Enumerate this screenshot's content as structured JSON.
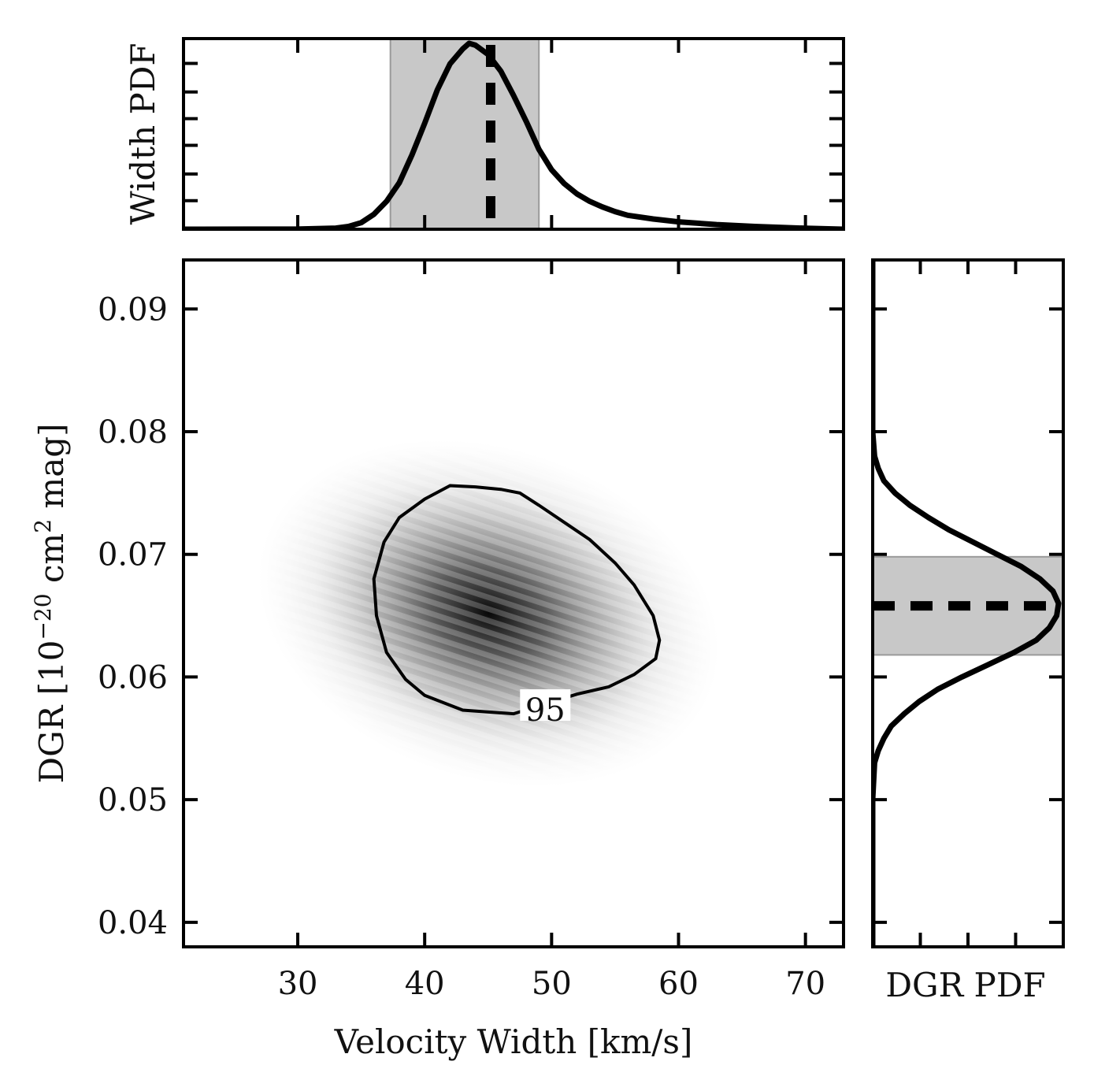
{
  "chart_data": [
    {
      "id": "joint",
      "type": "heatmap",
      "xlabel": "Velocity Width [km/s]",
      "ylabel": "DGR [10⁻²⁰ cm² mag]",
      "ylabel_parts": {
        "base": "DGR [10",
        "exp1": "−20",
        "mid": " cm",
        "exp2": "2",
        "end": " mag]"
      },
      "xlim": [
        21,
        73
      ],
      "ylim": [
        0.038,
        0.094
      ],
      "xticks": [
        30,
        40,
        50,
        60,
        70
      ],
      "yticks": [
        0.04,
        0.05,
        0.06,
        0.07,
        0.08,
        0.09
      ],
      "xtick_labels": [
        "30",
        "40",
        "50",
        "60",
        "70"
      ],
      "ytick_labels": [
        "0.04",
        "0.05",
        "0.06",
        "0.07",
        "0.08",
        "0.09"
      ],
      "peak": {
        "x": 43.5,
        "y": 0.0668
      },
      "contour_level_label": "95",
      "contour_95": [
        [
          42,
          0.0756
        ],
        [
          44,
          0.0755
        ],
        [
          46,
          0.0753
        ],
        [
          47.5,
          0.075
        ],
        [
          49,
          0.074
        ],
        [
          51,
          0.0726
        ],
        [
          53,
          0.0712
        ],
        [
          55,
          0.0693
        ],
        [
          56.5,
          0.0675
        ],
        [
          58,
          0.065
        ],
        [
          58.5,
          0.063
        ],
        [
          58.2,
          0.0615
        ],
        [
          56.5,
          0.0602
        ],
        [
          54.5,
          0.0592
        ],
        [
          52,
          0.0586
        ],
        [
          47,
          0.057
        ],
        [
          43,
          0.0573
        ],
        [
          40,
          0.0585
        ],
        [
          38.5,
          0.0598
        ],
        [
          37,
          0.062
        ],
        [
          36.2,
          0.065
        ],
        [
          36,
          0.068
        ],
        [
          36.8,
          0.071
        ],
        [
          38,
          0.073
        ],
        [
          40,
          0.0745
        ],
        [
          42,
          0.0756
        ]
      ],
      "colormap": "greys"
    },
    {
      "id": "width_pdf",
      "type": "line",
      "ylabel": "Width PDF",
      "xlim": [
        21,
        73
      ],
      "x": [
        21,
        30,
        33,
        34,
        35,
        36,
        37,
        38,
        39,
        40,
        41,
        42,
        43,
        43.5,
        44,
        45,
        46,
        47,
        48,
        49,
        50,
        51,
        52,
        53,
        54,
        55,
        56,
        58,
        60,
        63,
        66,
        70,
        73
      ],
      "values": [
        0,
        0.001,
        0.006,
        0.015,
        0.035,
        0.08,
        0.15,
        0.25,
        0.4,
        0.57,
        0.75,
        0.89,
        0.97,
        1.0,
        0.99,
        0.94,
        0.85,
        0.72,
        0.58,
        0.43,
        0.32,
        0.245,
        0.19,
        0.15,
        0.12,
        0.095,
        0.075,
        0.055,
        0.04,
        0.025,
        0.015,
        0.005,
        0.0
      ],
      "median": 45.2,
      "interval": [
        37.3,
        49
      ],
      "ytick_fractions": [
        0.15,
        0.29,
        0.44,
        0.58,
        0.72,
        0.87
      ]
    },
    {
      "id": "dgr_pdf",
      "type": "line",
      "xlabel": "DGR PDF",
      "ylim": [
        0.038,
        0.094
      ],
      "y": [
        0.038,
        0.05,
        0.053,
        0.054,
        0.055,
        0.056,
        0.057,
        0.058,
        0.059,
        0.06,
        0.061,
        0.062,
        0.063,
        0.064,
        0.065,
        0.066,
        0.067,
        0.068,
        0.069,
        0.07,
        0.071,
        0.072,
        0.073,
        0.074,
        0.075,
        0.076,
        0.077,
        0.078,
        0.08,
        0.094
      ],
      "values": [
        0,
        0.0,
        0.01,
        0.03,
        0.06,
        0.1,
        0.17,
        0.25,
        0.35,
        0.48,
        0.62,
        0.76,
        0.88,
        0.95,
        0.99,
        1.0,
        0.97,
        0.9,
        0.8,
        0.67,
        0.54,
        0.41,
        0.3,
        0.2,
        0.12,
        0.06,
        0.03,
        0.01,
        0.0,
        0
      ],
      "median": 0.0658,
      "interval": [
        0.0618,
        0.0698
      ],
      "xtick_fractions": [
        0.25,
        0.5,
        0.75
      ]
    }
  ]
}
